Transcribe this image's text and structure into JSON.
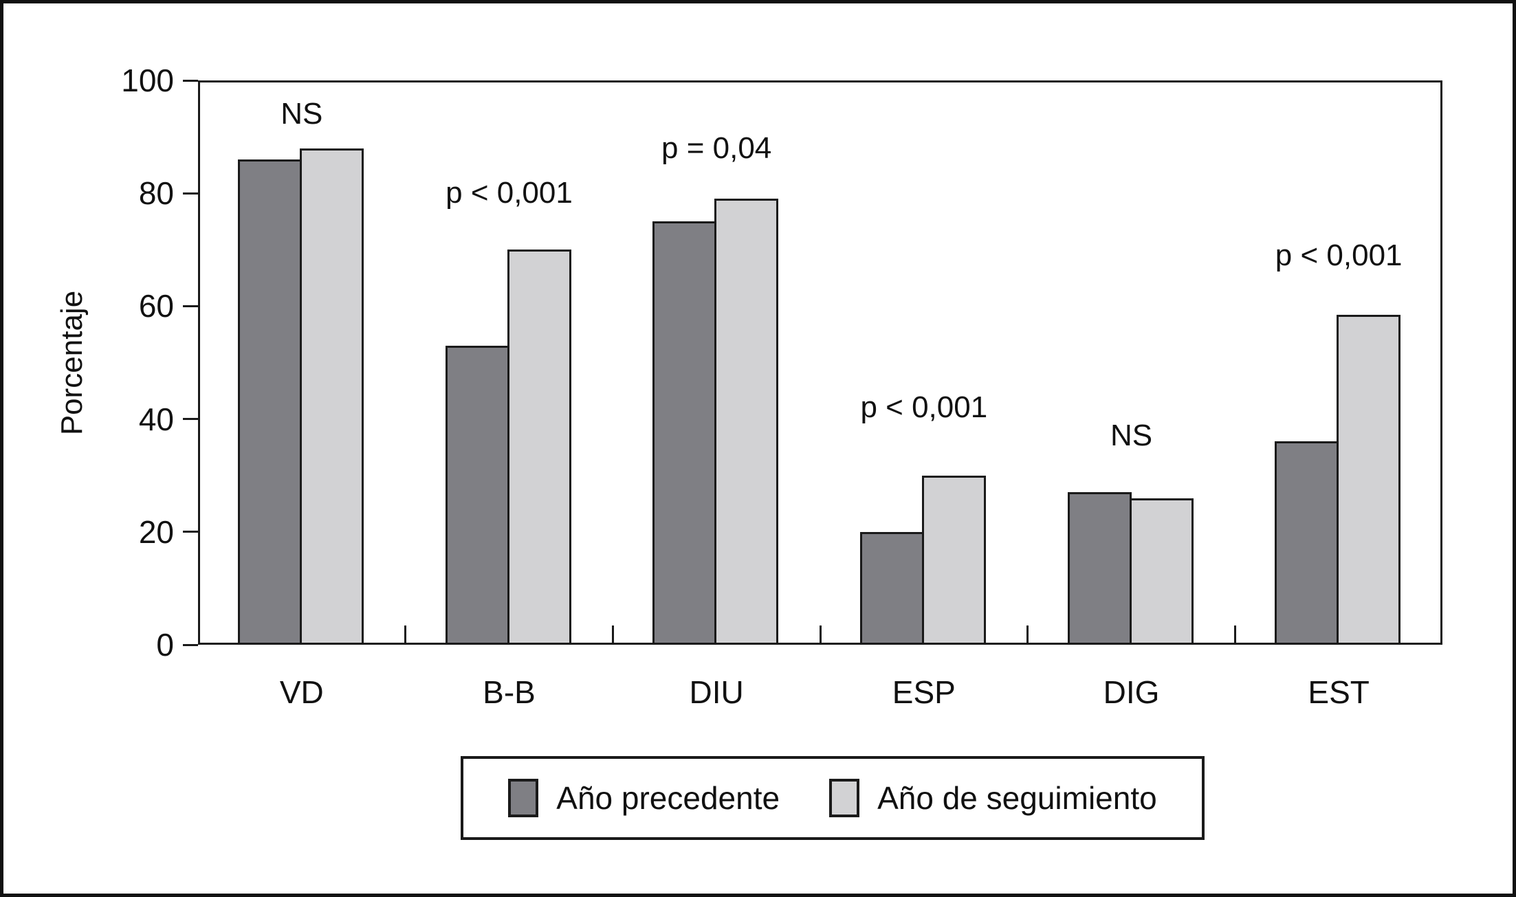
{
  "figure": {
    "kind": "statistical bar figure",
    "background": "#ffffff",
    "frame_color": "#1a1a1a"
  },
  "chart_data": {
    "type": "bar",
    "title": "",
    "xlabel": "",
    "ylabel": "Porcentaje",
    "ylim": [
      0,
      100
    ],
    "yticks": [
      0,
      20,
      40,
      60,
      80,
      100
    ],
    "grid": false,
    "categories": [
      "VD",
      "B-B",
      "DIU",
      "ESP",
      "DIG",
      "EST"
    ],
    "series": [
      {
        "name": "Año precedente",
        "color": "#7f7f84",
        "values": [
          86,
          53,
          75,
          20,
          27,
          36
        ]
      },
      {
        "name": "Año de seguimiento",
        "color": "#d2d2d4",
        "values": [
          88,
          70,
          79,
          30,
          26,
          58.5
        ]
      }
    ],
    "annotations": [
      {
        "category": "VD",
        "text": "NS",
        "y": 94
      },
      {
        "category": "B-B",
        "text": "p < 0,001",
        "y": 80
      },
      {
        "category": "DIU",
        "text": "p = 0,04",
        "y": 88
      },
      {
        "category": "ESP",
        "text": "p < 0,001",
        "y": 42
      },
      {
        "category": "DIG",
        "text": "NS",
        "y": 37
      },
      {
        "category": "EST",
        "text": "p < 0,001",
        "y": 69
      }
    ],
    "legend": {
      "position": "bottom",
      "entries": [
        "Año precedente",
        "Año de seguimiento"
      ]
    },
    "bar_border_color": "#1a1a1a",
    "axis_color": "#1a1a1a",
    "text_color": "#111111"
  }
}
